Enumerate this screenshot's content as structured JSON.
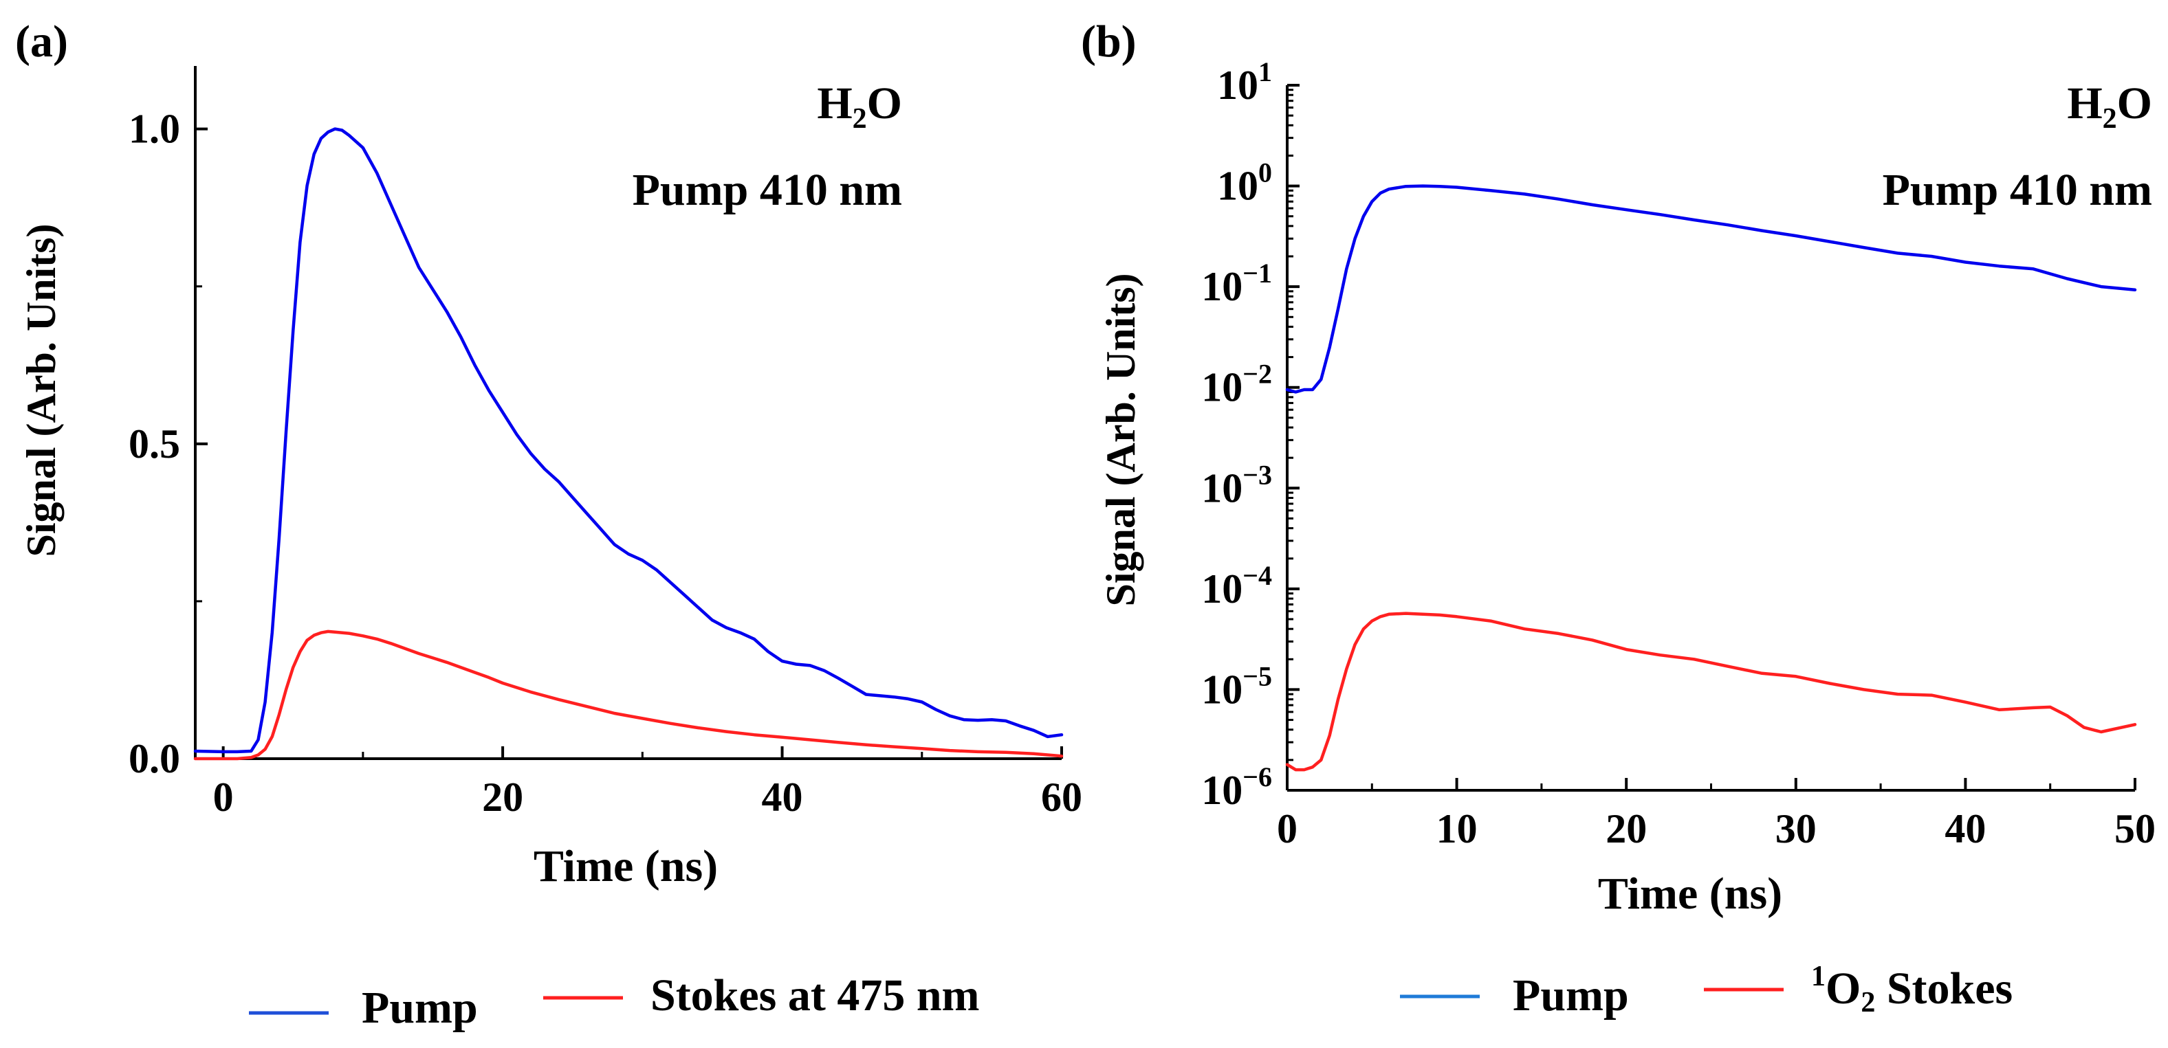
{
  "chart_data": [
    {
      "type": "line",
      "panel_label": "(a)",
      "annotation": {
        "species_main": "H",
        "species_sub": "2",
        "species_tail": "O",
        "pump": "Pump 410 nm"
      },
      "xlabel": "Time (ns)",
      "ylabel": "Signal (Arb. Units)",
      "xscale": "linear",
      "yscale": "linear",
      "xlim": [
        -2,
        60
      ],
      "ylim": [
        0,
        1.1
      ],
      "xticks": [
        0,
        20,
        40,
        60
      ],
      "xtick_labels": [
        "0",
        "20",
        "40",
        "60"
      ],
      "yticks": [
        0,
        0.5,
        1.0
      ],
      "ytick_labels": [
        "0.0",
        "0.5",
        "1.0"
      ],
      "legend_position": "bottom",
      "series": [
        {
          "name": "Pump",
          "color": "#0000ee",
          "legend_color": "#1f4fd8",
          "x": [
            -2,
            0,
            1,
            2,
            2.5,
            3,
            3.5,
            4,
            4.5,
            5,
            5.5,
            6,
            6.5,
            7,
            7.5,
            8,
            8.5,
            9,
            10,
            11,
            12,
            13,
            14,
            15,
            16,
            17,
            18,
            19,
            20,
            21,
            22,
            23,
            24,
            25,
            26,
            27,
            28,
            29,
            30,
            31,
            32,
            33,
            34,
            35,
            36,
            37,
            38,
            39,
            40,
            41,
            42,
            43,
            44,
            45,
            46,
            47,
            48,
            49,
            50,
            51,
            52,
            53,
            54,
            55,
            56,
            57,
            58,
            59,
            60
          ],
          "values": [
            0.012,
            0.011,
            0.011,
            0.012,
            0.03,
            0.09,
            0.2,
            0.35,
            0.52,
            0.68,
            0.82,
            0.91,
            0.96,
            0.985,
            0.995,
            1.0,
            0.998,
            0.99,
            0.97,
            0.93,
            0.88,
            0.83,
            0.78,
            0.745,
            0.71,
            0.67,
            0.625,
            0.585,
            0.55,
            0.515,
            0.485,
            0.46,
            0.44,
            0.415,
            0.39,
            0.365,
            0.34,
            0.325,
            0.315,
            0.3,
            0.28,
            0.26,
            0.24,
            0.22,
            0.208,
            0.2,
            0.19,
            0.17,
            0.155,
            0.15,
            0.148,
            0.14,
            0.128,
            0.115,
            0.102,
            0.1,
            0.098,
            0.095,
            0.09,
            0.078,
            0.068,
            0.062,
            0.061,
            0.062,
            0.06,
            0.052,
            0.045,
            0.035,
            0.038
          ]
        },
        {
          "name": "Stokes at 475 nm",
          "color": "#ff2020",
          "legend_color": "#ff2020",
          "x": [
            -2,
            0,
            1,
            2,
            2.5,
            3,
            3.5,
            4,
            4.5,
            5,
            5.5,
            6,
            6.5,
            7,
            7.5,
            8,
            9,
            10,
            11,
            12,
            13,
            14,
            15,
            16,
            17,
            18,
            19,
            20,
            22,
            24,
            26,
            28,
            30,
            32,
            34,
            36,
            38,
            40,
            42,
            44,
            46,
            48,
            50,
            52,
            54,
            56,
            58,
            59,
            60
          ],
          "values": [
            0.0,
            0.0,
            0.0,
            0.002,
            0.006,
            0.015,
            0.035,
            0.07,
            0.11,
            0.145,
            0.17,
            0.188,
            0.196,
            0.2,
            0.202,
            0.201,
            0.199,
            0.195,
            0.19,
            0.183,
            0.175,
            0.167,
            0.16,
            0.153,
            0.145,
            0.137,
            0.129,
            0.12,
            0.106,
            0.094,
            0.083,
            0.072,
            0.064,
            0.056,
            0.049,
            0.043,
            0.038,
            0.034,
            0.03,
            0.026,
            0.022,
            0.019,
            0.016,
            0.013,
            0.011,
            0.01,
            0.008,
            0.006,
            0.004
          ]
        }
      ]
    },
    {
      "type": "line",
      "panel_label": "(b)",
      "annotation": {
        "species_main": "H",
        "species_sub": "2",
        "species_tail": "O",
        "pump": "Pump 410 nm"
      },
      "xlabel": "Time (ns)",
      "ylabel": "Signal (Arb. Units)",
      "xscale": "linear",
      "yscale": "log",
      "xlim": [
        0,
        50
      ],
      "ylim_exponent": [
        -6,
        1
      ],
      "xticks": [
        0,
        10,
        20,
        30,
        40,
        50
      ],
      "xtick_labels": [
        "0",
        "10",
        "20",
        "30",
        "40",
        "50"
      ],
      "ytick_exponents": [
        -6,
        -5,
        -4,
        -3,
        -2,
        -1,
        0,
        1
      ],
      "ytick_base": "10",
      "ytick_exponent_labels": [
        "−6",
        "−5",
        "−4",
        "−3",
        "−2",
        "−1",
        "0",
        "1"
      ],
      "legend_position": "bottom",
      "series": [
        {
          "name": "Pump",
          "color": "#0000ee",
          "legend_color": "#1f7bd8",
          "x": [
            0,
            0.5,
            1,
            1.5,
            2,
            2.5,
            3,
            3.5,
            4,
            4.5,
            5,
            5.5,
            6,
            7,
            8,
            9,
            10,
            12,
            14,
            16,
            18,
            20,
            22,
            24,
            26,
            28,
            30,
            32,
            34,
            36,
            38,
            40,
            42,
            44,
            46,
            48,
            50
          ],
          "values": [
            0.0095,
            0.009,
            0.0095,
            0.0095,
            0.012,
            0.025,
            0.06,
            0.15,
            0.3,
            0.5,
            0.7,
            0.85,
            0.93,
            0.99,
            1.0,
            0.99,
            0.97,
            0.9,
            0.83,
            0.74,
            0.65,
            0.58,
            0.52,
            0.46,
            0.41,
            0.36,
            0.32,
            0.28,
            0.245,
            0.215,
            0.2,
            0.175,
            0.16,
            0.15,
            0.12,
            0.1,
            0.093
          ]
        },
        {
          "name": "¹O₂ Stokes",
          "legend_pre_sup": "1",
          "legend_main": "O",
          "legend_sub": "2",
          "legend_tail": " Stokes",
          "color": "#ff2020",
          "legend_color": "#ff2020",
          "x": [
            0,
            0.5,
            1,
            1.5,
            2,
            2.5,
            3,
            3.5,
            4,
            4.5,
            5,
            5.5,
            6,
            7,
            8,
            9,
            10,
            12,
            14,
            16,
            18,
            20,
            22,
            24,
            26,
            28,
            30,
            32,
            34,
            36,
            38,
            40,
            42,
            44,
            45,
            46,
            47,
            48,
            50
          ],
          "values": [
            1.8e-06,
            1.6e-06,
            1.6e-06,
            1.7e-06,
            2e-06,
            3.5e-06,
            8e-06,
            1.6e-05,
            2.8e-05,
            4e-05,
            4.8e-05,
            5.3e-05,
            5.6e-05,
            5.7e-05,
            5.6e-05,
            5.5e-05,
            5.3e-05,
            4.8e-05,
            4e-05,
            3.6e-05,
            3.1e-05,
            2.5e-05,
            2.2e-05,
            2e-05,
            1.7e-05,
            1.45e-05,
            1.35e-05,
            1.15e-05,
            1e-05,
            9e-06,
            8.8e-06,
            7.5e-06,
            6.3e-06,
            6.6e-06,
            6.7e-06,
            5.5e-06,
            4.2e-06,
            3.8e-06,
            4.5e-06
          ]
        }
      ]
    }
  ]
}
